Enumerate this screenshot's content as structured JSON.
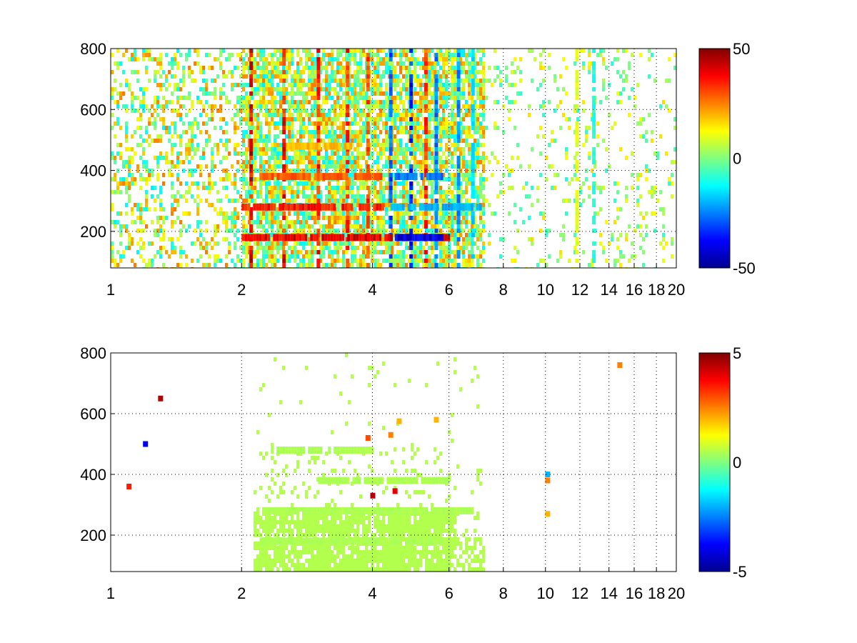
{
  "chart_data": [
    {
      "type": "heatmap",
      "title": "",
      "xlabel": "",
      "ylabel": "",
      "x_scale": "log",
      "xlim": [
        1,
        20
      ],
      "ylim": [
        80,
        800
      ],
      "xticks": [
        1,
        2,
        4,
        6,
        8,
        10,
        12,
        14,
        16,
        18,
        20
      ],
      "xtick_labels": [
        "1",
        "2",
        "4",
        "6",
        "8",
        "10",
        "12",
        "14",
        "16",
        "18",
        "20"
      ],
      "yticks": [
        200,
        400,
        600,
        800
      ],
      "ytick_labels": [
        "200",
        "400",
        "600",
        "800"
      ],
      "grid": true,
      "colormap": "jet",
      "colorbar": {
        "min": -50,
        "max": 50,
        "ticks": [
          -50,
          0,
          50
        ],
        "tick_labels": [
          "-50",
          "0",
          "50"
        ]
      },
      "bands": [
        {
          "x": [
            2.0,
            6.0
          ],
          "y": 180,
          "value": 45
        },
        {
          "x": [
            2.0,
            4.2
          ],
          "y": 280,
          "value": 40
        },
        {
          "x": [
            2.2,
            4.2
          ],
          "y": 380,
          "value": 32
        },
        {
          "x": [
            2.5,
            3.6
          ],
          "y": 480,
          "value": 22
        },
        {
          "x": [
            4.5,
            5.8
          ],
          "y": 180,
          "value": -45
        },
        {
          "x": [
            4.4,
            7.1
          ],
          "y": 280,
          "value": -22
        },
        {
          "x": [
            4.5,
            5.8
          ],
          "y": 380,
          "value": -30
        }
      ],
      "columns": [
        {
          "x": 2.1,
          "value": 48
        },
        {
          "x": 2.5,
          "value": 44
        },
        {
          "x": 3.0,
          "value": 42
        },
        {
          "x": 3.5,
          "value": 40
        },
        {
          "x": 3.9,
          "value": 38
        },
        {
          "x": 4.4,
          "value": -35
        },
        {
          "x": 4.9,
          "value": -42
        },
        {
          "x": 5.3,
          "value": 40
        },
        {
          "x": 5.6,
          "value": -30
        },
        {
          "x": 6.3,
          "value": -28
        },
        {
          "x": 6.8,
          "value": -20
        },
        {
          "x": 11.8,
          "value": 12
        },
        {
          "x": 12.9,
          "value": -12
        }
      ]
    },
    {
      "type": "heatmap",
      "title": "",
      "xlabel": "",
      "ylabel": "",
      "x_scale": "log",
      "xlim": [
        1,
        20
      ],
      "ylim": [
        80,
        800
      ],
      "xticks": [
        1,
        2,
        4,
        6,
        8,
        10,
        12,
        14,
        16,
        18,
        20
      ],
      "xtick_labels": [
        "1",
        "2",
        "4",
        "6",
        "8",
        "10",
        "12",
        "14",
        "16",
        "18",
        "20"
      ],
      "yticks": [
        200,
        400,
        600,
        800
      ],
      "ytick_labels": [
        "200",
        "400",
        "600",
        "800"
      ],
      "grid": true,
      "colormap": "jet",
      "colorbar": {
        "min": -5,
        "max": 5,
        "ticks": [
          -5,
          0,
          5
        ],
        "tick_labels": [
          "-5",
          "0",
          "5"
        ]
      },
      "bands": [
        {
          "x": [
            2.2,
            6.0
          ],
          "y": 180,
          "value": 0.5
        },
        {
          "x": [
            2.3,
            6.8
          ],
          "y": 280,
          "value": 0.5
        },
        {
          "x": [
            3.0,
            6.0
          ],
          "y": 380,
          "value": 0.5
        },
        {
          "x": [
            2.3,
            4.0
          ],
          "y": 480,
          "value": 0.5
        }
      ],
      "spots": [
        {
          "x": 3.9,
          "y": 520,
          "value": 3.0
        },
        {
          "x": 4.4,
          "y": 530,
          "value": 2.5
        },
        {
          "x": 4.6,
          "y": 575,
          "value": 2.0
        },
        {
          "x": 5.6,
          "y": 580,
          "value": 2.0
        },
        {
          "x": 4.0,
          "y": 330,
          "value": 4.5
        },
        {
          "x": 4.5,
          "y": 345,
          "value": 4.0
        },
        {
          "x": 10.1,
          "y": 400,
          "value": -2.0
        },
        {
          "x": 10.1,
          "y": 380,
          "value": 2.5
        },
        {
          "x": 10.1,
          "y": 270,
          "value": 2.0
        },
        {
          "x": 14.8,
          "y": 760,
          "value": 2.5
        },
        {
          "x": 1.2,
          "y": 500,
          "value": -4.0
        },
        {
          "x": 1.3,
          "y": 650,
          "value": 4.5
        },
        {
          "x": 1.1,
          "y": 360,
          "value": 3.5
        }
      ]
    }
  ]
}
